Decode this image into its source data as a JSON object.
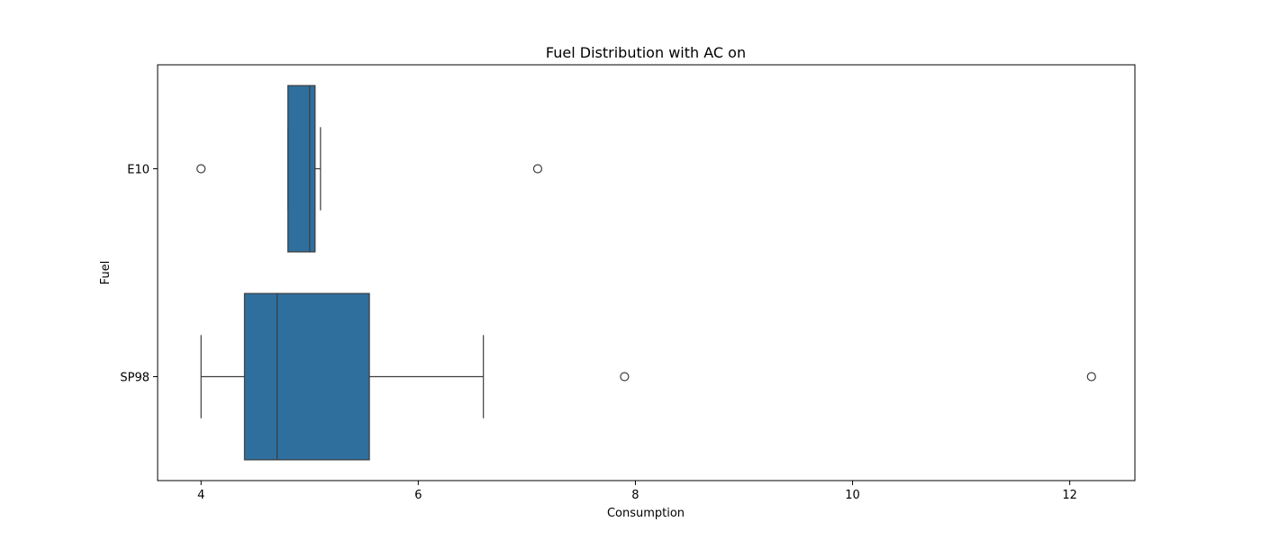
{
  "chart_data": {
    "type": "box",
    "orientation": "horizontal",
    "title": "Fuel Distribution with AC on",
    "xlabel": "Consumption",
    "ylabel": "Fuel",
    "xlim": [
      3.6,
      12.6
    ],
    "xticks": [
      4,
      6,
      8,
      10,
      12
    ],
    "categories": [
      "E10",
      "SP98"
    ],
    "grid": false,
    "box_color": "#2e6f9e",
    "line_color": "#3d3d3d",
    "boxes": [
      {
        "category": "E10",
        "whisker_low": 4.8,
        "q1": 4.8,
        "median": 5.0,
        "q3": 5.05,
        "whisker_high": 5.1,
        "outliers": [
          4.0,
          7.1
        ]
      },
      {
        "category": "SP98",
        "whisker_low": 4.0,
        "q1": 4.4,
        "median": 4.7,
        "q3": 5.55,
        "whisker_high": 6.6,
        "outliers": [
          7.9,
          12.2
        ]
      }
    ]
  }
}
